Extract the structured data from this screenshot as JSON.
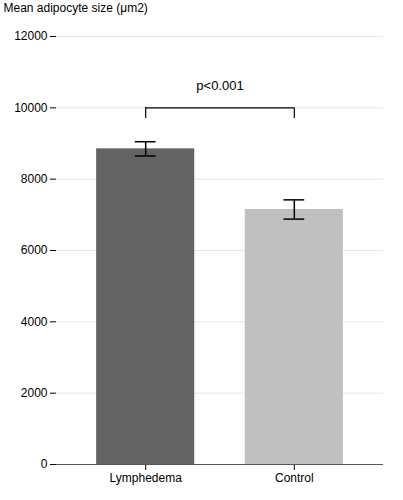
{
  "chart_data": {
    "type": "bar",
    "categories": [
      "Lymphedema",
      "Control"
    ],
    "values": [
      8850,
      7150
    ],
    "errors": [
      200,
      270
    ],
    "colors": [
      "#636363",
      "#c0c0c0"
    ],
    "ylabel": "Mean adipocyte size (μm2)",
    "ylim": [
      0,
      12000
    ],
    "yticks": [
      0,
      2000,
      4000,
      6000,
      8000,
      10000,
      12000
    ],
    "grid": true,
    "annotations": [
      {
        "text": "p<0.001",
        "from": "Lymphedema",
        "to": "Control",
        "y": 10000,
        "drop": 9700,
        "text_y": 10500
      }
    ]
  }
}
